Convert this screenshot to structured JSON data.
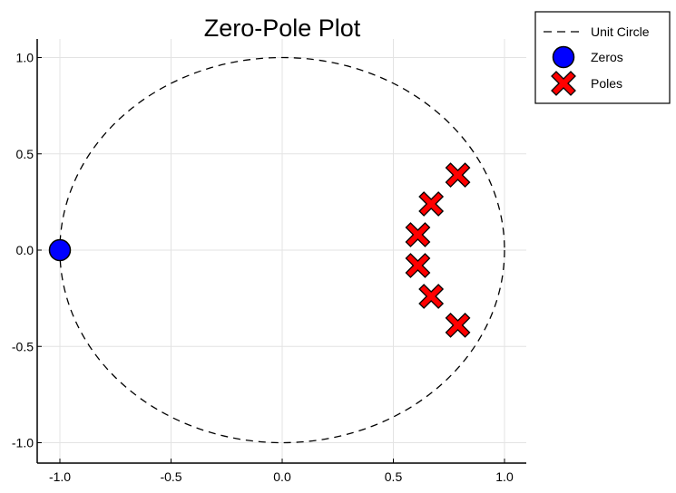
{
  "chart_data": {
    "type": "scatter",
    "title": "Zero-Pole Plot",
    "xlabel": "",
    "ylabel": "",
    "xlim": [
      -1.1,
      1.1
    ],
    "ylim": [
      -1.1,
      1.1
    ],
    "x_ticks": [
      -1.0,
      -0.5,
      0.0,
      0.5,
      1.0
    ],
    "x_tick_labels": [
      "-1.0",
      "-0.5",
      "0.0",
      "0.5",
      "1.0"
    ],
    "y_ticks": [
      -1.0,
      -0.5,
      0.0,
      0.5,
      1.0
    ],
    "y_tick_labels": [
      "-1.0",
      "-0.5",
      "0.0",
      "0.5",
      "1.0"
    ],
    "grid": true,
    "legend_position": "top-right, outside plot",
    "unit_circle": {
      "name": "Unit Circle",
      "radius": 1.0,
      "style": "dashed",
      "color": "#000000"
    },
    "series": [
      {
        "name": "Zeros",
        "marker": "circle",
        "color": "#0000ff",
        "edge_color": "#000000",
        "points": [
          {
            "x": -1.0,
            "y": 0.0
          }
        ]
      },
      {
        "name": "Poles",
        "marker": "x-cross",
        "color": "#ff0000",
        "edge_color": "#000000",
        "points": [
          {
            "x": 0.79,
            "y": 0.39
          },
          {
            "x": 0.67,
            "y": 0.24
          },
          {
            "x": 0.61,
            "y": 0.08
          },
          {
            "x": 0.61,
            "y": -0.08
          },
          {
            "x": 0.67,
            "y": -0.24
          },
          {
            "x": 0.79,
            "y": -0.39
          }
        ]
      }
    ],
    "legend": [
      {
        "label": "Unit Circle",
        "marker": "dashed-line"
      },
      {
        "label": "Zeros",
        "marker": "circle"
      },
      {
        "label": "Poles",
        "marker": "x-cross"
      }
    ]
  }
}
